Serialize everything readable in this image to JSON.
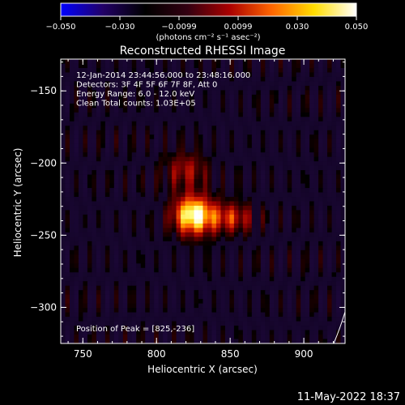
{
  "colorbar": {
    "ticks": [
      "-0.050",
      "-0.030",
      "-0.0099",
      "0.0099",
      "0.030",
      "0.050"
    ],
    "unit_label": "(photons cm⁻² s⁻¹ asec⁻²)",
    "colors": [
      "#0000ff",
      "#220066",
      "#000000",
      "#330011",
      "#aa0000",
      "#ff6600",
      "#ffdd00",
      "#ffffff"
    ]
  },
  "chart_data": {
    "type": "heatmap",
    "title": "Reconstructed RHESSI Image",
    "xlabel": "Heliocentric X (arcsec)",
    "ylabel": "Heliocentric Y (arcsec)",
    "xlim": [
      735,
      928
    ],
    "ylim": [
      -325,
      -128
    ],
    "xticks": [
      750,
      800,
      850,
      900
    ],
    "yticks": [
      -150,
      -200,
      -250,
      -300
    ],
    "xtick_labels": [
      "750",
      "800",
      "850",
      "900"
    ],
    "ytick_labels": [
      "−150",
      "−200",
      "−250",
      "−300"
    ],
    "value_range": [
      -0.05,
      0.05
    ],
    "peak": [
      825,
      -236
    ],
    "info_lines": [
      "12-Jan-2014 23:44:56.000 to 23:48:16.000",
      "Detectors: 3F 4F 5F 6F 7F 8F, Att 0",
      "Energy Range: 6.0 - 12.0 keV",
      "Clean    Total counts: 1.03E+05"
    ],
    "peak_label": "Position of Peak = [825,-236]"
  },
  "footer": {
    "timestamp": "11-May-2022 18:37"
  }
}
